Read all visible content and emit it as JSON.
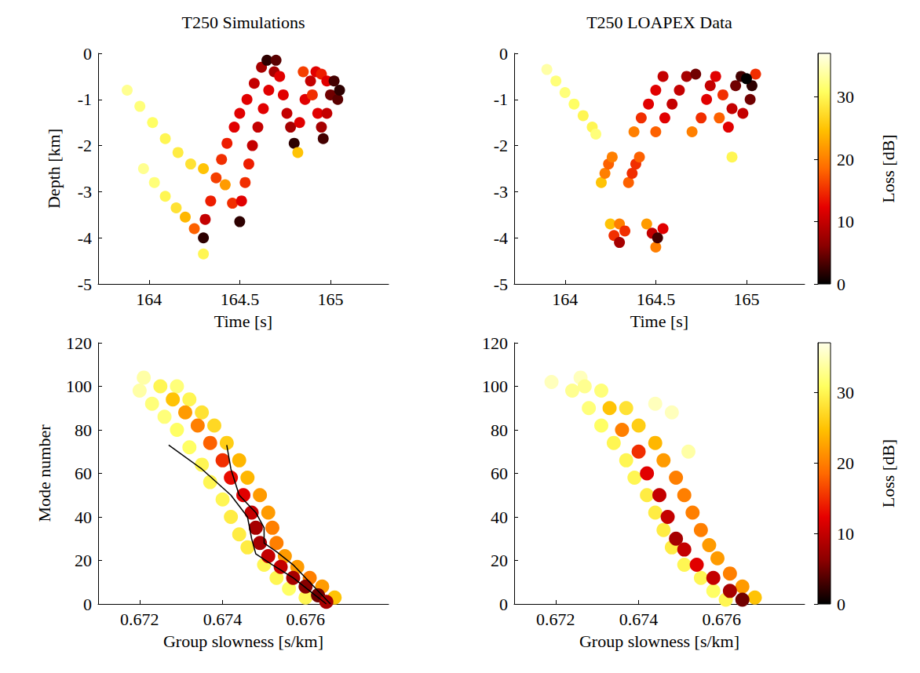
{
  "chart_data": [
    {
      "type": "scatter",
      "title": "T250 Simulations",
      "x_label": "Time [s]",
      "y_label": "Depth [km]",
      "xlim": [
        163.72,
        165.32
      ],
      "ylim": [
        -5,
        0
      ],
      "xticks": [
        164,
        164.5,
        165
      ],
      "yticks": [
        0,
        -1,
        -2,
        -3,
        -4,
        -5
      ],
      "marker": "circle",
      "grid": false,
      "cells": [
        [
          163.88,
          -0.8,
          33
        ],
        [
          163.95,
          -1.15,
          32
        ],
        [
          164.02,
          -1.5,
          31
        ],
        [
          164.09,
          -1.85,
          30
        ],
        [
          164.16,
          -2.15,
          29
        ],
        [
          164.23,
          -2.4,
          28
        ],
        [
          164.3,
          -2.5,
          25
        ],
        [
          163.97,
          -2.5,
          33
        ],
        [
          164.03,
          -2.8,
          32
        ],
        [
          164.09,
          -3.1,
          30
        ],
        [
          164.15,
          -3.35,
          28
        ],
        [
          164.2,
          -3.55,
          24
        ],
        [
          164.25,
          -3.8,
          18
        ],
        [
          164.3,
          -4.35,
          30
        ],
        [
          164.42,
          -2.85,
          22
        ],
        [
          164.46,
          -3.25,
          15
        ],
        [
          164.3,
          -4.0,
          2
        ],
        [
          164.31,
          -3.6,
          10
        ],
        [
          164.34,
          -3.2,
          14
        ],
        [
          164.37,
          -2.7,
          16
        ],
        [
          164.4,
          -2.3,
          15
        ],
        [
          164.43,
          -1.95,
          14
        ],
        [
          164.47,
          -1.6,
          12
        ],
        [
          164.5,
          -1.3,
          12
        ],
        [
          164.54,
          -1.0,
          12
        ],
        [
          164.58,
          -0.65,
          10
        ],
        [
          164.62,
          -0.3,
          8
        ],
        [
          164.65,
          -0.15,
          2
        ],
        [
          164.5,
          -3.65,
          2
        ],
        [
          164.51,
          -3.2,
          12
        ],
        [
          164.53,
          -2.8,
          15
        ],
        [
          164.55,
          -2.4,
          14
        ],
        [
          164.57,
          -2.0,
          10
        ],
        [
          164.6,
          -1.6,
          10
        ],
        [
          164.63,
          -1.2,
          12
        ],
        [
          164.66,
          -0.8,
          12
        ],
        [
          164.69,
          -0.4,
          8
        ],
        [
          164.7,
          -0.15,
          4
        ],
        [
          164.72,
          -0.5,
          12
        ],
        [
          164.74,
          -0.9,
          12
        ],
        [
          164.76,
          -1.3,
          10
        ],
        [
          164.78,
          -1.6,
          8
        ],
        [
          164.8,
          -1.95,
          2
        ],
        [
          164.82,
          -2.15,
          25
        ],
        [
          164.83,
          -1.5,
          12
        ],
        [
          164.86,
          -1.0,
          12
        ],
        [
          164.89,
          -0.6,
          10
        ],
        [
          164.92,
          -0.4,
          12
        ],
        [
          164.9,
          -0.9,
          15
        ],
        [
          164.93,
          -1.3,
          12
        ],
        [
          164.95,
          -1.6,
          8
        ],
        [
          164.96,
          -1.85,
          3
        ],
        [
          164.85,
          -0.4,
          16
        ],
        [
          164.95,
          -0.45,
          14
        ],
        [
          164.98,
          -0.6,
          12
        ],
        [
          164.98,
          -1.3,
          10
        ],
        [
          165.0,
          -0.9,
          5
        ],
        [
          165.02,
          -0.6,
          3
        ],
        [
          165.04,
          -1.0,
          4
        ],
        [
          165.05,
          -0.8,
          2
        ]
      ]
    },
    {
      "type": "scatter",
      "title": "T250 LOAPEX Data",
      "x_label": "Time [s]",
      "xlim": [
        163.72,
        165.32
      ],
      "ylim": [
        -5,
        0
      ],
      "xticks": [
        164,
        164.5,
        165
      ],
      "yticks": [
        0,
        -1,
        -2,
        -3,
        -4,
        -5
      ],
      "marker": "circle",
      "grid": false,
      "colorbar": {
        "label": "Loss [dB]",
        "range": [
          0,
          37
        ],
        "ticks": [
          0,
          10,
          20,
          30
        ]
      },
      "cells": [
        [
          163.9,
          -0.35,
          34
        ],
        [
          163.95,
          -0.6,
          32
        ],
        [
          164.0,
          -0.85,
          32
        ],
        [
          164.05,
          -1.1,
          31
        ],
        [
          164.1,
          -1.35,
          30
        ],
        [
          164.15,
          -1.6,
          30
        ],
        [
          164.17,
          -1.75,
          32
        ],
        [
          164.92,
          -2.25,
          30
        ],
        [
          164.2,
          -2.8,
          25
        ],
        [
          164.22,
          -2.6,
          20
        ],
        [
          164.24,
          -2.4,
          18
        ],
        [
          164.26,
          -2.25,
          20
        ],
        [
          164.35,
          -2.8,
          18
        ],
        [
          164.37,
          -2.6,
          15
        ],
        [
          164.39,
          -2.4,
          15
        ],
        [
          164.41,
          -2.25,
          18
        ],
        [
          164.25,
          -3.7,
          25
        ],
        [
          164.3,
          -3.7,
          20
        ],
        [
          164.27,
          -3.95,
          15
        ],
        [
          164.33,
          -3.85,
          15
        ],
        [
          164.3,
          -4.1,
          8
        ],
        [
          164.45,
          -3.7,
          22
        ],
        [
          164.5,
          -4.2,
          20
        ],
        [
          164.54,
          -3.8,
          12
        ],
        [
          164.48,
          -3.9,
          10
        ],
        [
          164.51,
          -4.0,
          3
        ],
        [
          164.38,
          -1.7,
          20
        ],
        [
          164.42,
          -1.4,
          15
        ],
        [
          164.46,
          -1.1,
          12
        ],
        [
          164.5,
          -0.8,
          12
        ],
        [
          164.54,
          -0.5,
          10
        ],
        [
          164.5,
          -1.7,
          18
        ],
        [
          164.55,
          -1.4,
          12
        ],
        [
          164.59,
          -1.1,
          10
        ],
        [
          164.63,
          -0.8,
          10
        ],
        [
          164.67,
          -0.5,
          8
        ],
        [
          164.72,
          -0.45,
          5
        ],
        [
          164.7,
          -1.7,
          20
        ],
        [
          164.85,
          -1.4,
          18
        ],
        [
          164.75,
          -1.4,
          15
        ],
        [
          164.87,
          -0.9,
          15
        ],
        [
          165.05,
          -0.45,
          15
        ],
        [
          164.78,
          -1.0,
          12
        ],
        [
          164.83,
          -0.5,
          12
        ],
        [
          164.8,
          -0.7,
          10
        ],
        [
          164.9,
          -1.6,
          12
        ],
        [
          164.92,
          -1.2,
          10
        ],
        [
          164.98,
          -1.3,
          10
        ],
        [
          164.94,
          -0.7,
          5
        ],
        [
          165.02,
          -1.0,
          5
        ],
        [
          164.97,
          -0.5,
          3
        ],
        [
          165.03,
          -0.7,
          2
        ],
        [
          165.0,
          -0.55,
          0
        ]
      ]
    },
    {
      "type": "scatter",
      "x_label": "Group slowness [s/km]",
      "y_label": "Mode number",
      "xlim": [
        0.671,
        0.678
      ],
      "ylim": [
        0,
        120
      ],
      "xticks": [
        0.672,
        0.674,
        0.676
      ],
      "yticks": [
        0,
        20,
        40,
        60,
        80,
        100,
        120
      ],
      "marker": "circle",
      "grid": false,
      "cells": [
        [
          0.6721,
          104,
          34
        ],
        [
          0.672,
          98,
          34
        ],
        [
          0.6723,
          92,
          32
        ],
        [
          0.6726,
          86,
          32
        ],
        [
          0.6729,
          80,
          31
        ],
        [
          0.6732,
          72,
          31
        ],
        [
          0.6735,
          64,
          30
        ],
        [
          0.6737,
          56,
          30
        ],
        [
          0.674,
          48,
          30
        ],
        [
          0.6742,
          40,
          29
        ],
        [
          0.6744,
          32,
          29
        ],
        [
          0.6746,
          26,
          29
        ],
        [
          0.675,
          18,
          30
        ],
        [
          0.6753,
          12,
          30
        ],
        [
          0.6756,
          7,
          31
        ],
        [
          0.676,
          3,
          30
        ],
        [
          0.6729,
          100,
          32
        ],
        [
          0.6732,
          94,
          30
        ],
        [
          0.6735,
          88,
          28
        ],
        [
          0.6738,
          82,
          27
        ],
        [
          0.6741,
          74,
          26
        ],
        [
          0.6744,
          66,
          24
        ],
        [
          0.6746,
          58,
          24
        ],
        [
          0.6749,
          50,
          22
        ],
        [
          0.6751,
          42,
          22
        ],
        [
          0.6752,
          35,
          20
        ],
        [
          0.6753,
          28,
          20
        ],
        [
          0.6755,
          22,
          22
        ],
        [
          0.6758,
          17,
          22
        ],
        [
          0.6761,
          12,
          20
        ],
        [
          0.6764,
          8,
          22
        ],
        [
          0.6767,
          3,
          25
        ],
        [
          0.6725,
          100,
          30
        ],
        [
          0.6728,
          94,
          25
        ],
        [
          0.6731,
          88,
          22
        ],
        [
          0.6734,
          82,
          20
        ],
        [
          0.6737,
          74,
          18
        ],
        [
          0.674,
          66,
          15
        ],
        [
          0.6742,
          58,
          13
        ],
        [
          0.6745,
          50,
          12
        ],
        [
          0.6747,
          42,
          10
        ],
        [
          0.6748,
          35,
          8
        ],
        [
          0.6749,
          28,
          8
        ],
        [
          0.6751,
          22,
          10
        ],
        [
          0.6754,
          17,
          10
        ],
        [
          0.6757,
          12,
          8
        ],
        [
          0.676,
          8,
          6
        ],
        [
          0.6763,
          4,
          5
        ],
        [
          0.6765,
          1,
          8
        ]
      ],
      "curves": [
        {
          "color": "#000000",
          "x": [
            0.6727,
            0.6735,
            0.6742,
            0.6746,
            0.6747,
            0.6748,
            0.6752,
            0.6757,
            0.6761,
            0.6765
          ],
          "y": [
            73,
            62,
            50,
            40,
            30,
            23,
            18,
            12,
            6,
            0
          ]
        },
        {
          "color": "#000000",
          "x": [
            0.6741,
            0.6742,
            0.6744,
            0.6748,
            0.675,
            0.675,
            0.6753,
            0.6757,
            0.6761,
            0.6765,
            0.6766
          ],
          "y": [
            73,
            62,
            50,
            42,
            35,
            28,
            24,
            18,
            10,
            2,
            0
          ]
        }
      ]
    },
    {
      "type": "scatter",
      "x_label": "Group slowness [s/km]",
      "xlim": [
        0.671,
        0.678
      ],
      "ylim": [
        0,
        120
      ],
      "xticks": [
        0.672,
        0.674,
        0.676
      ],
      "yticks": [
        0,
        20,
        40,
        60,
        80,
        100,
        120
      ],
      "marker": "circle",
      "grid": false,
      "colorbar": {
        "label": "Loss [dB]",
        "range": [
          0,
          37
        ],
        "ticks": [
          0,
          10,
          20,
          30
        ]
      },
      "cells": [
        [
          0.6748,
          88,
          35
        ],
        [
          0.6744,
          92,
          35
        ],
        [
          0.6752,
          70,
          34
        ],
        [
          0.6726,
          104,
          35
        ],
        [
          0.6719,
          102,
          35
        ],
        [
          0.6724,
          98,
          33
        ],
        [
          0.6728,
          90,
          32
        ],
        [
          0.6731,
          82,
          31
        ],
        [
          0.6734,
          74,
          30
        ],
        [
          0.6737,
          66,
          30
        ],
        [
          0.6739,
          58,
          30
        ],
        [
          0.6742,
          50,
          29
        ],
        [
          0.6744,
          42,
          29
        ],
        [
          0.6746,
          34,
          29
        ],
        [
          0.6748,
          26,
          29
        ],
        [
          0.6751,
          18,
          30
        ],
        [
          0.6755,
          12,
          30
        ],
        [
          0.6758,
          6,
          31
        ],
        [
          0.6761,
          2,
          30
        ],
        [
          0.6731,
          98,
          32
        ],
        [
          0.6737,
          90,
          28
        ],
        [
          0.674,
          82,
          26
        ],
        [
          0.6744,
          74,
          24
        ],
        [
          0.6746,
          66,
          22
        ],
        [
          0.6749,
          58,
          20
        ],
        [
          0.6751,
          50,
          20
        ],
        [
          0.6753,
          42,
          20
        ],
        [
          0.6755,
          34,
          20
        ],
        [
          0.6757,
          27,
          22
        ],
        [
          0.6759,
          21,
          22
        ],
        [
          0.6762,
          14,
          20
        ],
        [
          0.6765,
          8,
          22
        ],
        [
          0.6768,
          3,
          25
        ],
        [
          0.6727,
          100,
          33
        ],
        [
          0.6733,
          90,
          25
        ],
        [
          0.6736,
          80,
          20
        ],
        [
          0.674,
          70,
          15
        ],
        [
          0.6742,
          60,
          12
        ],
        [
          0.6745,
          50,
          10
        ],
        [
          0.6747,
          40,
          10
        ],
        [
          0.6749,
          30,
          8
        ],
        [
          0.6751,
          25,
          10
        ],
        [
          0.6754,
          18,
          12
        ],
        [
          0.6758,
          12,
          10
        ],
        [
          0.6762,
          6,
          8
        ],
        [
          0.6765,
          2,
          5
        ]
      ]
    }
  ]
}
